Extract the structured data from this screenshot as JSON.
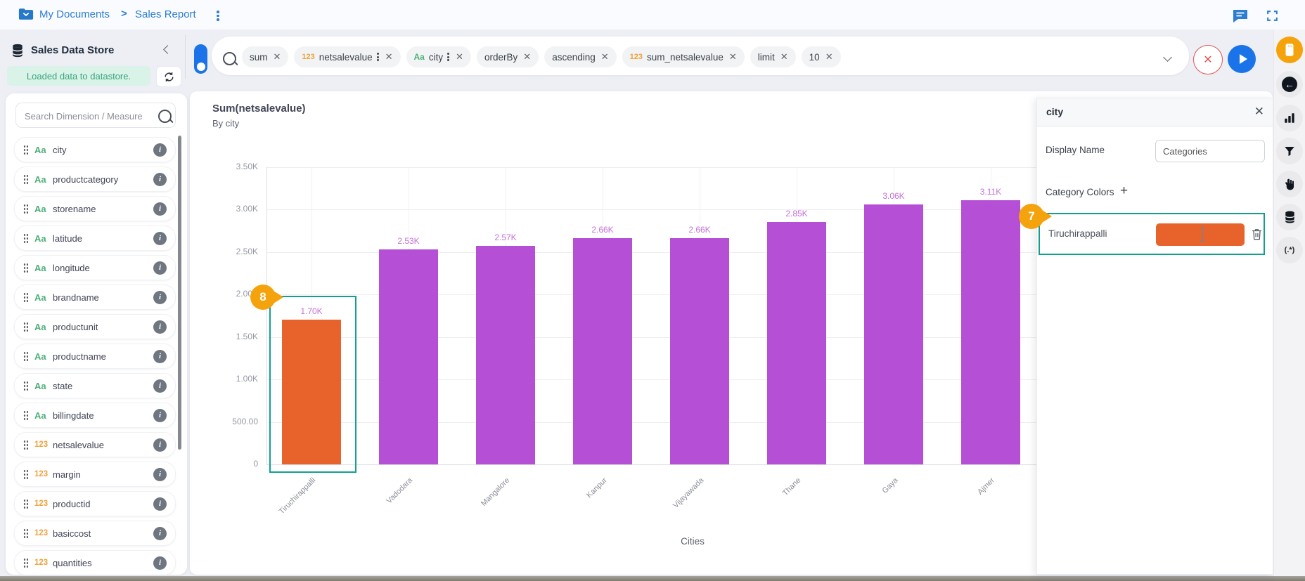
{
  "breadcrumb": {
    "separator": ">",
    "items": [
      "My Documents",
      "Sales Report"
    ]
  },
  "datastore_panel": {
    "title": "Sales Data Store",
    "status_message": "Loaded data to datastore.",
    "search_placeholder": "Search Dimension / Measure",
    "fields": [
      {
        "type": "text",
        "name": "city"
      },
      {
        "type": "text",
        "name": "productcategory"
      },
      {
        "type": "text",
        "name": "storename"
      },
      {
        "type": "text",
        "name": "latitude"
      },
      {
        "type": "text",
        "name": "longitude"
      },
      {
        "type": "text",
        "name": "brandname"
      },
      {
        "type": "text",
        "name": "productunit"
      },
      {
        "type": "text",
        "name": "productname"
      },
      {
        "type": "text",
        "name": "state"
      },
      {
        "type": "text",
        "name": "billingdate"
      },
      {
        "type": "number",
        "name": "netsalevalue"
      },
      {
        "type": "number",
        "name": "margin"
      },
      {
        "type": "number",
        "name": "productid"
      },
      {
        "type": "number",
        "name": "basiccost"
      },
      {
        "type": "number",
        "name": "quantities"
      },
      {
        "type": "",
        "name": ""
      }
    ]
  },
  "query_bar": {
    "chips": [
      {
        "badge": "",
        "label": "sum",
        "menu": false
      },
      {
        "badge": "123",
        "label": "netsalevalue",
        "menu": true
      },
      {
        "badge": "Aa",
        "label": "city",
        "menu": true
      },
      {
        "badge": "",
        "label": "orderBy",
        "menu": false
      },
      {
        "badge": "",
        "label": "ascending",
        "menu": false
      },
      {
        "badge": "123",
        "label": "sum_netsalevalue",
        "menu": false
      },
      {
        "badge": "",
        "label": "limit",
        "menu": false
      },
      {
        "badge": "",
        "label": "10",
        "menu": false
      }
    ]
  },
  "chart_data": {
    "type": "bar",
    "title": "Sum(netsalevalue)",
    "subtitle": "By city",
    "xlabel": "Cities",
    "ylabel": "",
    "categories": [
      "Tiruchirappalli",
      "Vadodara",
      "Mangalore",
      "Kanpur",
      "Vijayawada",
      "Thane",
      "Gaya",
      "Ajmer"
    ],
    "values": [
      1700,
      2530,
      2570,
      2660,
      2660,
      2850,
      3060,
      3110
    ],
    "value_labels": [
      "1.70K",
      "2.53K",
      "2.57K",
      "2.66K",
      "2.66K",
      "2.85K",
      "3.06K",
      "3.11K"
    ],
    "yticks": [
      {
        "label": "3.50K",
        "value": 3500
      },
      {
        "label": "3.00K",
        "value": 3000
      },
      {
        "label": "2.50K",
        "value": 2500
      },
      {
        "label": "2.00K",
        "value": 2000
      },
      {
        "label": "1.50K",
        "value": 1500
      },
      {
        "label": "1.00K",
        "value": 1000
      },
      {
        "label": "500.00",
        "value": 500
      },
      {
        "label": "0",
        "value": 0
      }
    ],
    "ylim": [
      0,
      3500
    ],
    "grid": true,
    "bar_color_default": "#b44fd6",
    "bar_color_selected": "#e8632c",
    "selected_index": 0
  },
  "settings_panel": {
    "title": "city",
    "display_name_label": "Display Name",
    "display_name_value": "Categories",
    "category_colors_label": "Category Colors",
    "add_button": "+",
    "categories": [
      {
        "name": "Tiruchirappalli",
        "color": "#e8632c"
      }
    ]
  },
  "annotations": {
    "badge_7": "7",
    "badge_8": "8"
  },
  "colors": {
    "accent_blue": "#2d7dd2",
    "run_blue": "#1a73e8",
    "selection_teal": "#12a08e",
    "badge_orange": "#f5a30c",
    "status_green_bg": "#d9f3e8",
    "status_green_text": "#38a47c",
    "dimension_green": "#4eb077",
    "measure_orange": "#f0a23c",
    "cancel_red": "#e05252"
  }
}
